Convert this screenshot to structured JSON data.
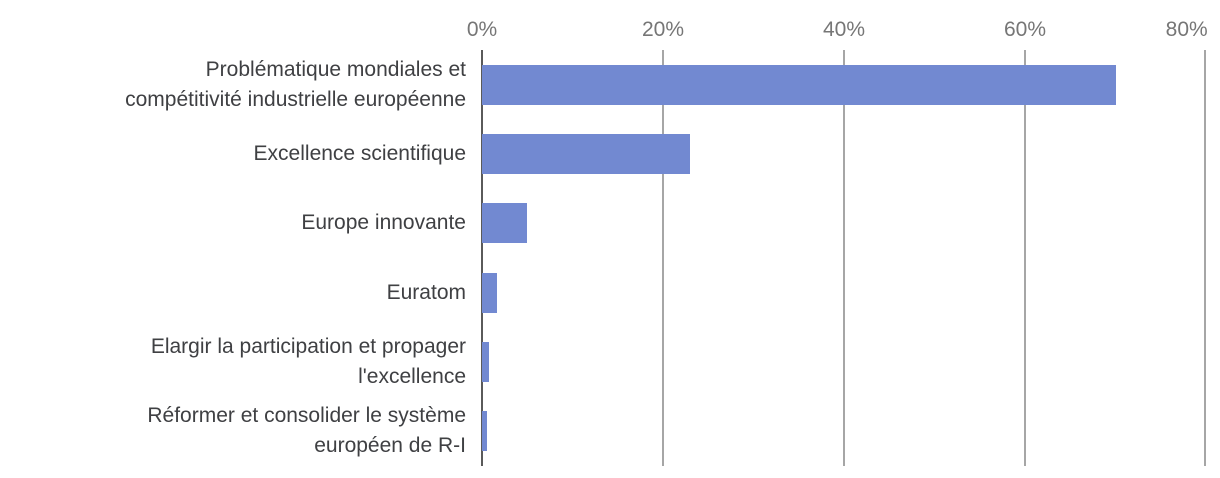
{
  "chart_data": {
    "type": "bar",
    "orientation": "horizontal",
    "title": "",
    "xlabel": "",
    "ylabel": "",
    "categories": [
      "Problématique mondiales et compétitivité industrielle européenne",
      "Excellence scientifique",
      "Europe innovante",
      "Euratom",
      "Elargir la participation et propager l'excellence",
      "Réformer et consolider le système européen de R-I"
    ],
    "values": [
      70,
      23,
      5,
      1.7,
      0.8,
      0.6
    ],
    "unit": "%",
    "xlim": [
      0,
      80
    ],
    "x_ticks": [
      0,
      20,
      40,
      60,
      80
    ],
    "x_tick_labels": [
      "0%",
      "20%",
      "40%",
      "60%",
      "80%"
    ],
    "axis_position": "top",
    "gridlines": true,
    "legend": "none",
    "colors": {
      "bar_color": "#7289D1",
      "axis_line_color": "#5A5A5A",
      "gridline_color": "#A6A6A6",
      "tick_label_color": "#767676",
      "category_label_color": "#3F4043",
      "background_color": "#FFFFFF"
    }
  },
  "display": {
    "category_labels": [
      "Problématique mondiales et\ncompétitivité industrielle européenne",
      "Excellence scientifique",
      "Europe innovante",
      "Euratom",
      "Elargir la participation et propager\nl'excellence",
      "Réformer et consolider le système\neuropéen de R-I"
    ]
  }
}
